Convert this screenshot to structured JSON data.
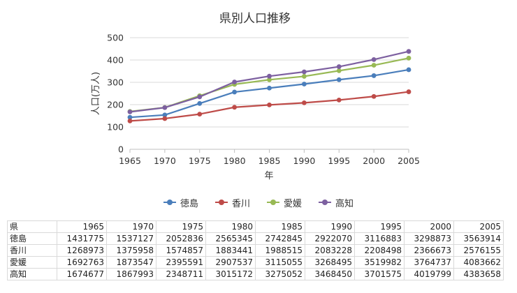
{
  "chart_data": {
    "type": "line",
    "title": "県別人口推移",
    "xlabel": "年",
    "ylabel": "人口(万人)",
    "categories": [
      "1965",
      "1970",
      "1975",
      "1980",
      "1985",
      "1990",
      "1995",
      "2000",
      "2005"
    ],
    "ylim": [
      0,
      500
    ],
    "yticks": [
      "0",
      "100",
      "200",
      "300",
      "400",
      "500"
    ],
    "grid": true,
    "legend_position": "bottom",
    "series": [
      {
        "name": "徳島",
        "color": "#4a7ebb",
        "values": [
          143.2,
          153.7,
          205.3,
          256.5,
          274.3,
          292.2,
          311.7,
          329.9,
          356.4
        ]
      },
      {
        "name": "香川",
        "color": "#be4b48",
        "values": [
          126.9,
          137.6,
          157.5,
          188.3,
          198.9,
          208.3,
          220.8,
          236.7,
          257.6
        ]
      },
      {
        "name": "愛媛",
        "color": "#98b954",
        "values": [
          169.3,
          187.4,
          239.6,
          290.8,
          311.5,
          326.8,
          352.0,
          376.5,
          408.4
        ]
      },
      {
        "name": "高知",
        "color": "#7d60a0",
        "values": [
          167.5,
          186.8,
          234.9,
          301.5,
          327.5,
          346.8,
          370.2,
          402.0,
          438.4
        ]
      }
    ]
  },
  "table": {
    "corner": "県",
    "header": [
      "1965",
      "1970",
      "1975",
      "1980",
      "1985",
      "1990",
      "1995",
      "2000",
      "2005"
    ],
    "rows": [
      {
        "name": "徳島",
        "values": [
          "1431775",
          "1537127",
          "2052836",
          "2565345",
          "2742845",
          "2922070",
          "3116883",
          "3298873",
          "3563914"
        ]
      },
      {
        "name": "香川",
        "values": [
          "1268973",
          "1375958",
          "1574857",
          "1883441",
          "1988515",
          "2083228",
          "2208498",
          "2366673",
          "2576155"
        ]
      },
      {
        "name": "愛媛",
        "values": [
          "1692763",
          "1873547",
          "2395591",
          "2907537",
          "3115055",
          "3268495",
          "3519982",
          "3764737",
          "4083662"
        ]
      },
      {
        "name": "高知",
        "values": [
          "1674677",
          "1867993",
          "2348711",
          "3015172",
          "3275052",
          "3468450",
          "3701575",
          "4019799",
          "4383658"
        ]
      }
    ]
  }
}
